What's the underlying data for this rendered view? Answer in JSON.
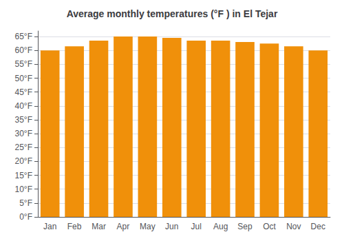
{
  "chart_data": {
    "type": "bar",
    "title": "Average monthly temperatures (°F ) in El Tejar",
    "categories": [
      "Jan",
      "Feb",
      "Mar",
      "Apr",
      "May",
      "Jun",
      "Jul",
      "Aug",
      "Sep",
      "Oct",
      "Nov",
      "Dec"
    ],
    "values": [
      60,
      61.5,
      63.5,
      65,
      65,
      64.5,
      63.5,
      63.5,
      63,
      62.5,
      61.5,
      60
    ],
    "color": "#F0900A",
    "ylim": [
      0,
      67
    ],
    "yticks": [
      {
        "value": 0,
        "label": "0°F"
      },
      {
        "value": 5,
        "label": "5°F"
      },
      {
        "value": 10,
        "label": "10°F"
      },
      {
        "value": 15,
        "label": "15°F"
      },
      {
        "value": 20,
        "label": "20°F"
      },
      {
        "value": 25,
        "label": "25°F"
      },
      {
        "value": 30,
        "label": "30°F"
      },
      {
        "value": 35,
        "label": "35°F"
      },
      {
        "value": 40,
        "label": "40°F"
      },
      {
        "value": 45,
        "label": "45°F"
      },
      {
        "value": 50,
        "label": "50°F"
      },
      {
        "value": 55,
        "label": "55°F"
      },
      {
        "value": 60,
        "label": "60°F"
      },
      {
        "value": 65,
        "label": "65°F"
      }
    ],
    "grid": true
  }
}
